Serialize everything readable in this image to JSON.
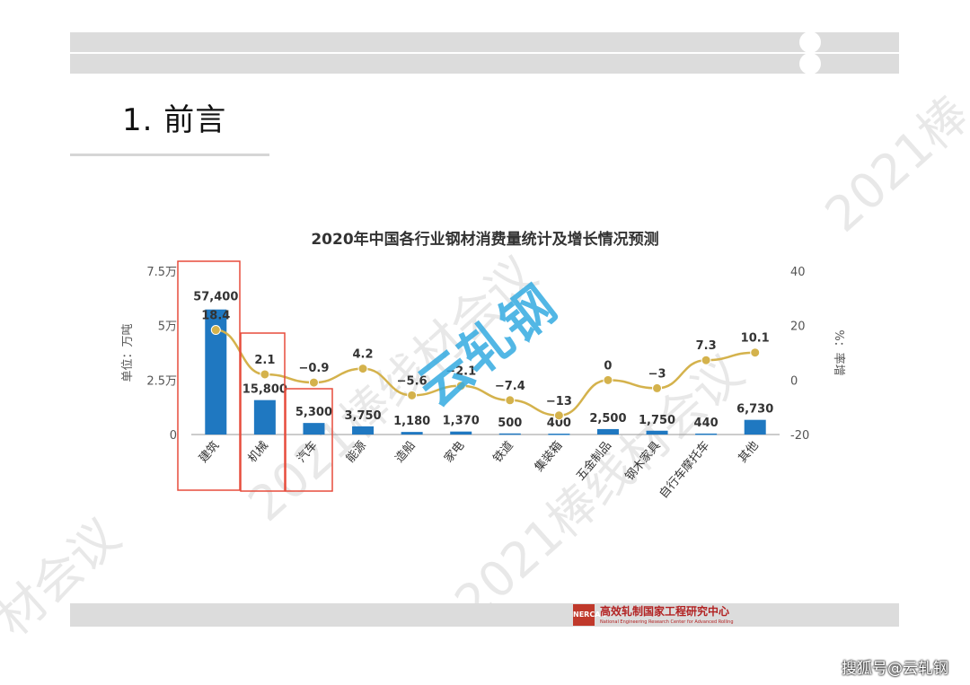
{
  "slide": {
    "title": "1. 前言",
    "watermarks": [
      "2021棒线材会议",
      "2021棒线材会议",
      "2021棒",
      "材会议"
    ],
    "stamp_text": "云轧钢",
    "footer_logo_cn": "高效轧制国家工程研究中心",
    "footer_logo_en": "National Engineering Research Center for Advanced Rolling",
    "footer_logo_badge": "NERCAR",
    "source": "搜狐号@云轧钢"
  },
  "chart_data": {
    "type": "bar",
    "title": "2020年中国各行业钢材消费量统计及增长情况预测",
    "categories": [
      "建筑",
      "机械",
      "汽车",
      "能源",
      "造船",
      "家电",
      "铁道",
      "集装箱",
      "五金制品",
      "钢木家具",
      "自行车摩托车",
      "其他"
    ],
    "series": [
      {
        "type": "bar",
        "axis": "left",
        "color": "#1f78c1",
        "values": [
          57400,
          15800,
          5300,
          3750,
          1180,
          1370,
          500,
          400,
          2500,
          1750,
          440,
          6730
        ],
        "labels": [
          "57,400",
          "15,800",
          "5,300",
          "3,750",
          "1,180",
          "1,370",
          "500",
          "400",
          "2,500",
          "1,750",
          "440",
          "6,730"
        ]
      },
      {
        "type": "line",
        "axis": "right",
        "color": "#d4b24c",
        "values": [
          18.4,
          2.1,
          -0.9,
          4.2,
          -5.6,
          -2.1,
          -7.4,
          -13,
          0,
          -3,
          7.3,
          10.1
        ],
        "labels": [
          "18.4",
          "2.1",
          "−0.9",
          "4.2",
          "−5.6",
          "−2.1",
          "−7.4",
          "−13",
          "0",
          "−3",
          "7.3",
          "10.1"
        ]
      }
    ],
    "ylabel": "单位：万吨",
    "y2label": "%：率增",
    "ylim": [
      0,
      75000
    ],
    "y2lim": [
      -20,
      40
    ],
    "yticks": [
      "0",
      "2.5万",
      "5万",
      "7.5万"
    ],
    "y2ticks": [
      "-20",
      "0",
      "20",
      "40"
    ],
    "highlight_categories": [
      "建筑",
      "机械",
      "汽车"
    ],
    "highlight_color": "#e74c3c",
    "grid": false
  }
}
